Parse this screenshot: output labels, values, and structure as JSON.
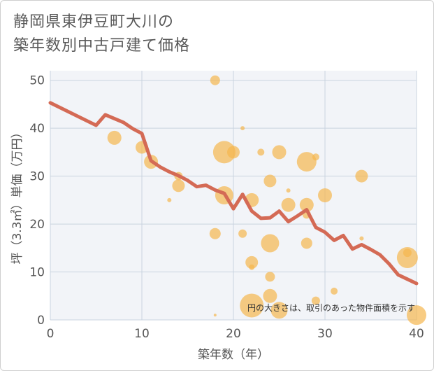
{
  "chart_data": {
    "type": "scatter",
    "title_lines": [
      "静岡県東伊豆町大川の",
      "築年数別中古戸建て価格"
    ],
    "xlabel": "築年数（年）",
    "ylabel": "坪（3.3㎡）単価（万円）",
    "xlim": [
      0,
      40
    ],
    "ylim": [
      0,
      52
    ],
    "xticks": [
      0,
      10,
      20,
      30,
      40
    ],
    "yticks": [
      0,
      10,
      20,
      30,
      40,
      50
    ],
    "note": "円の大きさは、取引のあった物件面積を示す",
    "colors": {
      "bubble": "#f5b74e",
      "line": "#d46a55",
      "grid": "#c9d3df",
      "plot_bg": "#f2f4f8"
    },
    "bubbles": [
      {
        "x": 18,
        "y": 50,
        "s": 7
      },
      {
        "x": 21,
        "y": 40,
        "s": 3
      },
      {
        "x": 7,
        "y": 38,
        "s": 10
      },
      {
        "x": 10,
        "y": 36,
        "s": 9
      },
      {
        "x": 19,
        "y": 35,
        "s": 16
      },
      {
        "x": 20,
        "y": 35,
        "s": 9
      },
      {
        "x": 23,
        "y": 35,
        "s": 5
      },
      {
        "x": 25,
        "y": 35,
        "s": 10
      },
      {
        "x": 28,
        "y": 33,
        "s": 14
      },
      {
        "x": 29,
        "y": 34,
        "s": 5
      },
      {
        "x": 11,
        "y": 33,
        "s": 10
      },
      {
        "x": 14,
        "y": 30,
        "s": 6
      },
      {
        "x": 14,
        "y": 28,
        "s": 9
      },
      {
        "x": 24,
        "y": 29,
        "s": 9
      },
      {
        "x": 34,
        "y": 30,
        "s": 9
      },
      {
        "x": 26,
        "y": 27,
        "s": 3
      },
      {
        "x": 19,
        "y": 26,
        "s": 13
      },
      {
        "x": 30,
        "y": 26,
        "s": 10
      },
      {
        "x": 13,
        "y": 25,
        "s": 3
      },
      {
        "x": 22,
        "y": 25,
        "s": 10
      },
      {
        "x": 26,
        "y": 24,
        "s": 10
      },
      {
        "x": 28,
        "y": 24,
        "s": 10
      },
      {
        "x": 28,
        "y": 22,
        "s": 6
      },
      {
        "x": 18,
        "y": 18,
        "s": 8
      },
      {
        "x": 21,
        "y": 18,
        "s": 6
      },
      {
        "x": 34,
        "y": 17,
        "s": 3
      },
      {
        "x": 24,
        "y": 16,
        "s": 13
      },
      {
        "x": 28,
        "y": 16,
        "s": 8
      },
      {
        "x": 39,
        "y": 14,
        "s": 6
      },
      {
        "x": 39,
        "y": 13,
        "s": 15
      },
      {
        "x": 22,
        "y": 12,
        "s": 9
      },
      {
        "x": 22,
        "y": 11,
        "s": 4
      },
      {
        "x": 24,
        "y": 9,
        "s": 7
      },
      {
        "x": 24,
        "y": 5,
        "s": 10
      },
      {
        "x": 31,
        "y": 6,
        "s": 5
      },
      {
        "x": 29,
        "y": 4,
        "s": 6
      },
      {
        "x": 22,
        "y": 3,
        "s": 17
      },
      {
        "x": 25,
        "y": 2,
        "s": 12
      },
      {
        "x": 18,
        "y": 1,
        "s": 2
      },
      {
        "x": 40,
        "y": 1,
        "s": 14
      }
    ],
    "trend": {
      "x": [
        0,
        5,
        6,
        8,
        9,
        10,
        11,
        12,
        13,
        14,
        15,
        16,
        17,
        18,
        19,
        20,
        21,
        22,
        23,
        24,
        25,
        26,
        27,
        28,
        29,
        30,
        31,
        32,
        33,
        34,
        35,
        36,
        37,
        38,
        39,
        40
      ],
      "y": [
        45.3,
        40.6,
        42.8,
        41.2,
        39.9,
        38.9,
        33.2,
        31.9,
        30.9,
        30.1,
        29.1,
        27.8,
        28.1,
        27.1,
        26.4,
        23.2,
        26.2,
        22.7,
        21.2,
        21.3,
        22.7,
        20.5,
        21.7,
        23.0,
        19.3,
        18.3,
        16.6,
        17.6,
        14.8,
        15.7,
        14.7,
        13.6,
        11.7,
        9.4,
        8.5,
        7.6
      ]
    }
  }
}
